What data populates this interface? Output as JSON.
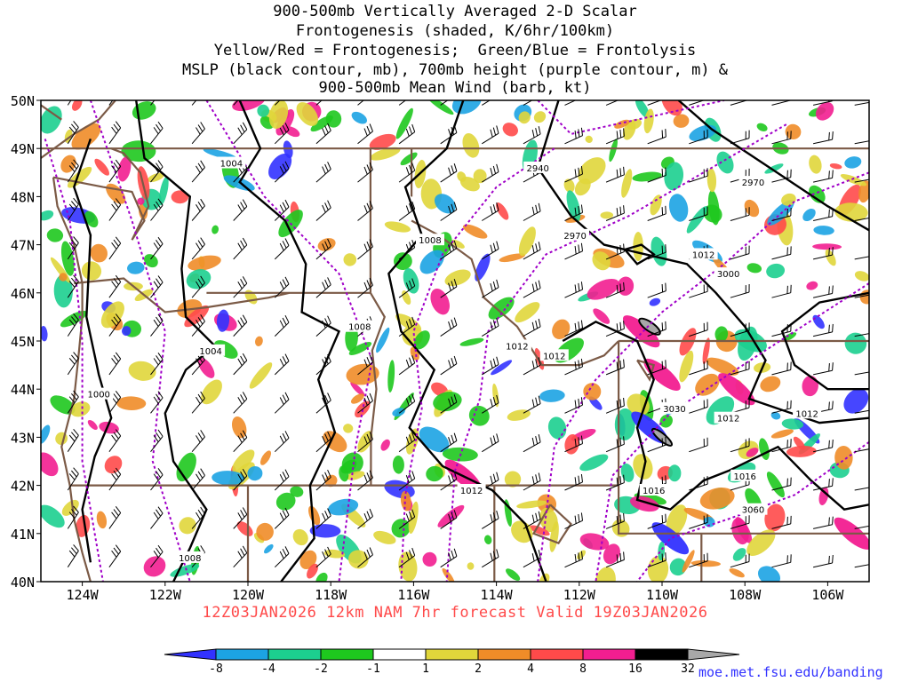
{
  "title_lines": [
    "900-500mb Vertically Averaged 2-D Scalar",
    "Frontogenesis (shaded, K/6hr/100km)",
    "Yellow/Red = Frontogenesis;  Green/Blue = Frontolysis",
    "MSLP (black contour, mb), 700mb height (purple contour, m) &",
    "900-500mb Mean Wind (barb, kt)"
  ],
  "lat_labels": [
    "50N",
    "49N",
    "48N",
    "47N",
    "46N",
    "45N",
    "44N",
    "43N",
    "42N",
    "41N",
    "40N"
  ],
  "lon_labels": [
    "124W",
    "122W",
    "120W",
    "118W",
    "116W",
    "114W",
    "112W",
    "110W",
    "108W",
    "106W"
  ],
  "pressure_labels": [
    {
      "text": "1004",
      "lon": -120.4,
      "lat": 48.7
    },
    {
      "text": "1008",
      "lon": -115.6,
      "lat": 47.1
    },
    {
      "text": "1008",
      "lon": -117.3,
      "lat": 45.3
    },
    {
      "text": "1004",
      "lon": -120.9,
      "lat": 44.8
    },
    {
      "text": "1000",
      "lon": -123.6,
      "lat": 43.9
    },
    {
      "text": "1012",
      "lon": -113.5,
      "lat": 44.9
    },
    {
      "text": "1012",
      "lon": -112.6,
      "lat": 44.7
    },
    {
      "text": "1012",
      "lon": -109.0,
      "lat": 46.8
    },
    {
      "text": "1012",
      "lon": -108.4,
      "lat": 43.4
    },
    {
      "text": "1012",
      "lon": -106.5,
      "lat": 43.5
    },
    {
      "text": "1016",
      "lon": -108.0,
      "lat": 42.2
    },
    {
      "text": "1016",
      "lon": -110.2,
      "lat": 41.9
    },
    {
      "text": "1012",
      "lon": -114.6,
      "lat": 41.9
    },
    {
      "text": "1008",
      "lon": -121.4,
      "lat": 40.5
    }
  ],
  "height_labels": [
    {
      "text": "2940",
      "lon": -113.0,
      "lat": 48.6
    },
    {
      "text": "2970",
      "lon": -107.8,
      "lat": 48.3
    },
    {
      "text": "2970",
      "lon": -112.1,
      "lat": 47.2
    },
    {
      "text": "3000",
      "lon": -108.4,
      "lat": 46.4
    },
    {
      "text": "3030",
      "lon": -109.7,
      "lat": 43.6
    },
    {
      "text": "3060",
      "lon": -107.8,
      "lat": 41.5
    }
  ],
  "colorbar": {
    "labels": [
      "-8",
      "-4",
      "-2",
      "-1",
      "1",
      "2",
      "4",
      "8",
      "16",
      "32"
    ],
    "colors": [
      "#3232ff",
      "#1ca3e3",
      "#1ccf8f",
      "#1ec81e",
      "#ffffff",
      "#e0d63b",
      "#f08c28",
      "#ff4a4a",
      "#f21e90",
      "#000000",
      "#a8a8a8"
    ]
  },
  "forecast_text": "12Z03JAN2026  12km NAM 7hr forecast Valid 19Z03JAN2026",
  "credit": "moe.met.fsu.edu/banding",
  "style": {
    "pressure_color": "#000000",
    "height_color": "#a000c8",
    "border_color": "#7b5a46",
    "frontogenesis_colors": [
      "#e0d63b",
      "#f08c28",
      "#ff4a4a",
      "#f21e90",
      "#000000"
    ],
    "frontolysis_colors": [
      "#1ec81e",
      "#1ccf8f",
      "#1ca3e3",
      "#3232ff"
    ]
  }
}
